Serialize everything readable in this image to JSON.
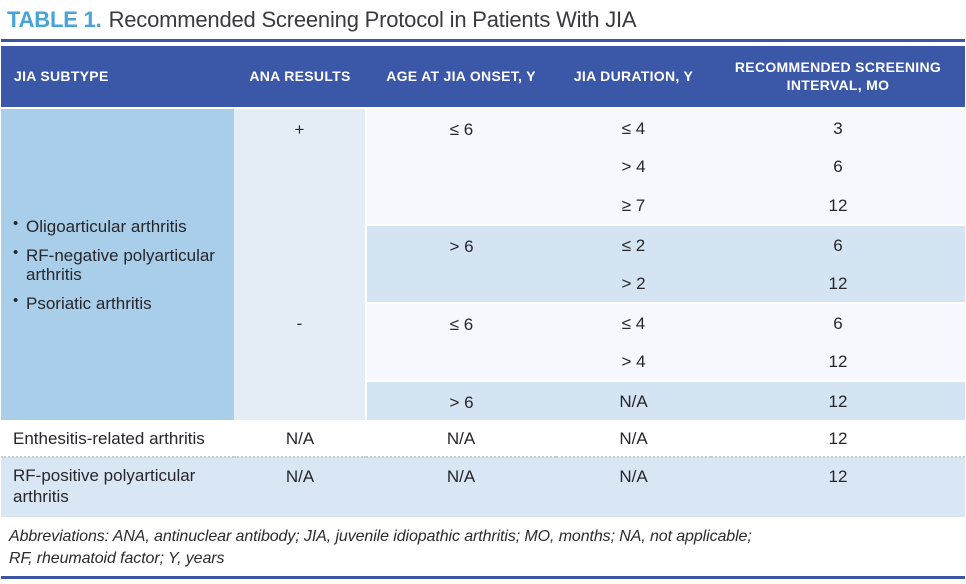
{
  "title": {
    "label": "TABLE 1.",
    "text": "Recommended Screening Protocol in Patients With JIA"
  },
  "colors": {
    "header_bg": "#3b57a8",
    "title_accent": "#47a4db",
    "rule": "#3a57a6",
    "subtype_bg": "#a9cee9",
    "ana_bg": "#e4edf6",
    "band_light": "#f5f8fc",
    "band_blue": "#d5e4f3",
    "row_rf": "#d9e7f5",
    "text_dark": "#26262b",
    "header_text": "#ffffff"
  },
  "columns": [
    "JIA SUBTYPE",
    "ANA RESULTS",
    "AGE AT JIA ONSET, Y",
    "JIA DURATION, Y",
    "RECOMMENDED SCREENING INTERVAL, MO"
  ],
  "group": {
    "subtypes": [
      "Oligoarticular arthritis",
      "RF-negative polyarticular arthritis",
      "Psoriatic arthritis"
    ],
    "ana_positive": {
      "label": "+",
      "age_groups": [
        {
          "age": "≤ 6",
          "rows": [
            {
              "duration": "≤ 4",
              "interval": "3"
            },
            {
              "duration": "> 4",
              "interval": "6"
            },
            {
              "duration": "≥ 7",
              "interval": "12"
            }
          ]
        },
        {
          "age": "> 6",
          "rows": [
            {
              "duration": "≤ 2",
              "interval": "6"
            },
            {
              "duration": "> 2",
              "interval": "12"
            }
          ]
        }
      ]
    },
    "ana_negative": {
      "label": "-",
      "age_groups": [
        {
          "age": "≤ 6",
          "rows": [
            {
              "duration": "≤ 4",
              "interval": "6"
            },
            {
              "duration": "> 4",
              "interval": "12"
            }
          ]
        },
        {
          "age": "> 6",
          "rows": [
            {
              "duration": "N/A",
              "interval": "12"
            }
          ]
        }
      ]
    }
  },
  "simple_rows": [
    {
      "subtype": "Enthesitis-related arthritis",
      "ana": "N/A",
      "age": "N/A",
      "duration": "N/A",
      "interval": "12"
    },
    {
      "subtype": "RF-positive polyarticular arthritis",
      "ana": "N/A",
      "age": "N/A",
      "duration": "N/A",
      "interval": "12"
    }
  ],
  "footnote": {
    "line1": "Abbreviations: ANA, antinuclear antibody; JIA, juvenile idiopathic arthritis; MO, months; NA, not applicable;",
    "line2": "RF, rheumatoid factor; Y, years"
  }
}
